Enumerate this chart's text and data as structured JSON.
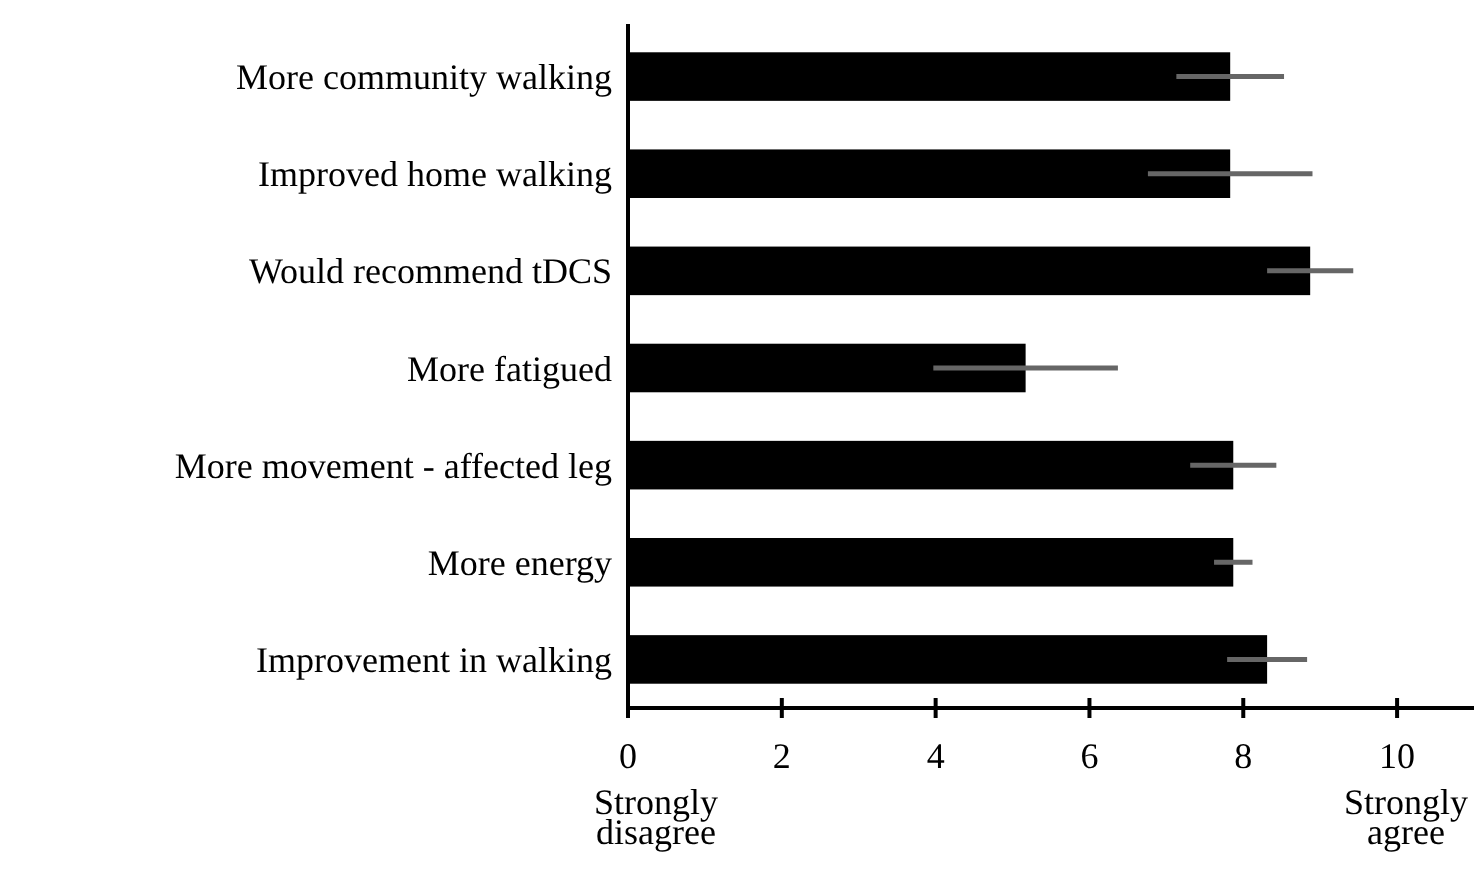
{
  "chart_data": {
    "type": "bar",
    "orientation": "horizontal",
    "categories": [
      "More community walking",
      "Improved home walking",
      "Would recommend tDCS",
      "More fatigued",
      "More movement - affected leg",
      "More energy",
      "Improvement in walking"
    ],
    "values": [
      7.83,
      7.83,
      8.87,
      5.17,
      7.87,
      7.87,
      8.31
    ],
    "errors": [
      0.7,
      1.07,
      0.56,
      1.2,
      0.56,
      0.25,
      0.52
    ],
    "color": "#000000",
    "xlim": [
      0,
      11
    ],
    "xticks": [
      0,
      2,
      4,
      6,
      8,
      10
    ],
    "annotations": [
      "Strongly\ndisagree",
      "Strongly\nagree"
    ],
    "grid": false
  }
}
